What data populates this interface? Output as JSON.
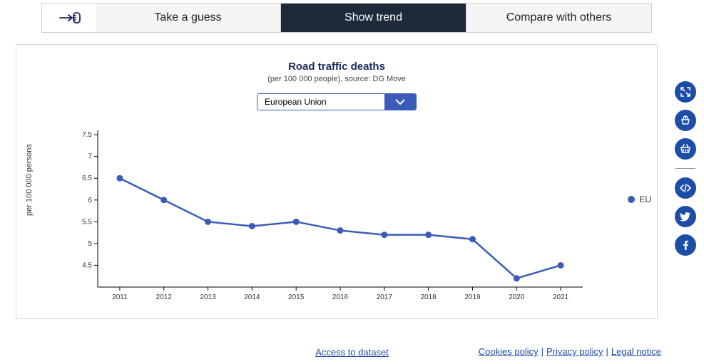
{
  "tabs": {
    "guess": "Take a guess",
    "trend": "Show trend",
    "compare": "Compare with others",
    "active": "trend"
  },
  "chart": {
    "title": "Road traffic deaths",
    "subtitle": "(per 100 000 people), source: DG Move",
    "subtitle_fontsize": 11,
    "selector_value": "European Union",
    "y_axis_title": "per 100 000 persons",
    "type": "line",
    "x": [
      2011,
      2012,
      2013,
      2014,
      2015,
      2016,
      2017,
      2018,
      2019,
      2020,
      2021
    ],
    "y": [
      6.5,
      6.0,
      5.5,
      5.4,
      5.5,
      5.3,
      5.2,
      5.2,
      5.1,
      4.2,
      4.5
    ],
    "yticks": [
      4.5,
      5,
      5.5,
      6,
      6.5,
      7,
      7.5
    ],
    "ylim": [
      4.0,
      7.6
    ],
    "xlim": [
      2010.5,
      2021.5
    ],
    "line_color": "#3a5bb8",
    "marker_color": "#3a5bb8",
    "marker_radius": 4.5,
    "line_width": 2.5,
    "axis_color": "#000000",
    "label_fontsize": 11,
    "tick_fontsize": 10,
    "background_color": "#ffffff"
  },
  "legend": {
    "label": "EU",
    "color": "#3a5bb8"
  },
  "footer": {
    "dataset_link": "Access to dataset",
    "cookies": "Cookies policy",
    "privacy": "Privacy policy",
    "legal": "Legal notice"
  },
  "colors": {
    "tab_active_bg": "#1c2a3a",
    "tab_inactive_bg": "#f5f5f5",
    "icon_bg": "#1e4da8",
    "link": "#1e4da8",
    "selector_border": "#3a5bb8"
  }
}
